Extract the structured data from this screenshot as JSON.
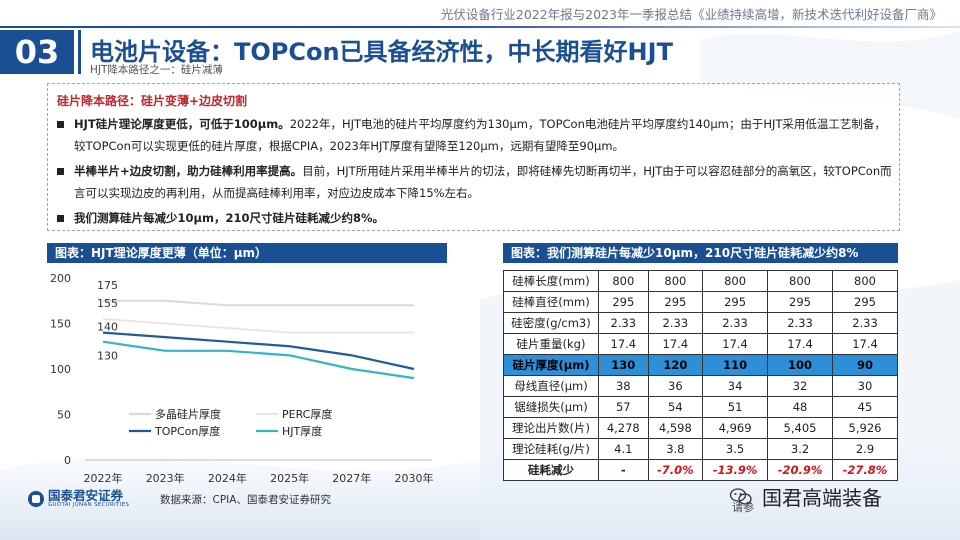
{
  "report_title": "光伏设备行业2022年报与2023年一季报总结《业绩持续高增，新技术迭代利好设备厂商》",
  "section_number": "03",
  "main_title": "电池片设备：TOPCon已具备经济性，中长期看好HJT",
  "sub_title": "HJT降本路径之一：硅片减薄",
  "info": {
    "head": "硅片降本路径：硅片变薄+边皮切割",
    "bullets": [
      {
        "bold": "HJT硅片理论厚度更低，可低于100μm。",
        "text": "2022年，HJT电池的硅片平均厚度约为130μm，TOPCon电池硅片平均厚度约140μm；由于HJT采用低温工艺制备，较TOPCon可以实现更低的硅片厚度，根据CPIA，2023年HJT厚度有望降至120μm，远期有望降至90μm。"
      },
      {
        "bold": "半棒半片+边皮切割，助力硅棒利用率提高。",
        "text": "目前，HJT所用硅片采用半棒半片的切法，即将硅棒先切断再切半，HJT由于可以容忍硅部分的高氧区，较TOPCon而言可以实现边皮的再利用，从而提高硅棒利用率，对应边皮成本下降15%左右。"
      },
      {
        "bold": "我们测算硅片每减少10μm，210尺寸硅片硅耗减少约8%。",
        "text": ""
      }
    ]
  },
  "chart_panel_title": "图表：HJT理论厚度更薄（单位：μm）",
  "table_panel_title": "图表：我们测算硅片每减少10μm，210尺寸硅片硅耗减少约8%",
  "source": "数据来源：CPIA、国泰君安证券研究",
  "logo": {
    "cn": "国泰君安证券",
    "en": "GUOTAI JUNAN SECURITIES"
  },
  "wechat": {
    "name": "国君高端装备",
    "under": "请参"
  },
  "colors": {
    "brand": "#1b4f93",
    "highlight": "#2d8fd7",
    "negative": "#d0161d"
  },
  "chart_data": {
    "type": "line",
    "categories": [
      "2022年",
      "2023年",
      "2024年",
      "2025年",
      "2027年",
      "2030年"
    ],
    "ylim": [
      0,
      200
    ],
    "yticks": [
      0,
      50,
      100,
      150,
      200
    ],
    "series": [
      {
        "name": "多晶硅片厚度",
        "color": "#d9d9d9",
        "values": [
          175,
          175,
          170,
          170,
          170,
          170
        ],
        "start_label": "175"
      },
      {
        "name": "PERC厚度",
        "color": "#e6e6e6",
        "values": [
          155,
          150,
          145,
          140,
          140,
          140
        ],
        "start_label": "155"
      },
      {
        "name": "TOPCon厚度",
        "color": "#1f5c99",
        "values": [
          140,
          135,
          130,
          125,
          115,
          100
        ],
        "start_label": "140"
      },
      {
        "name": "HJT厚度",
        "color": "#33b5c9",
        "values": [
          130,
          120,
          120,
          115,
          100,
          90
        ],
        "start_label": "130"
      }
    ]
  },
  "table": {
    "rows": [
      {
        "label": "硅棒长度(mm)",
        "cells": [
          "800",
          "800",
          "800",
          "800",
          "800"
        ]
      },
      {
        "label": "硅棒直径(mm)",
        "cells": [
          "295",
          "295",
          "295",
          "295",
          "295"
        ]
      },
      {
        "label": "硅密度(g/cm3)",
        "cells": [
          "2.33",
          "2.33",
          "2.33",
          "2.33",
          "2.33"
        ]
      },
      {
        "label": "硅片重量(kg)",
        "cells": [
          "17.4",
          "17.4",
          "17.4",
          "17.4",
          "17.4"
        ]
      },
      {
        "label": "硅片厚度(μm)",
        "cells": [
          "130",
          "120",
          "110",
          "100",
          "90"
        ],
        "highlight": true
      },
      {
        "label": "母线直径(μm)",
        "cells": [
          "38",
          "36",
          "34",
          "32",
          "30"
        ]
      },
      {
        "label": "锯缝损失(μm)",
        "cells": [
          "57",
          "54",
          "51",
          "48",
          "45"
        ]
      },
      {
        "label": "理论出片数(片)",
        "cells": [
          "4,278",
          "4,598",
          "4,969",
          "5,405",
          "5,926"
        ]
      },
      {
        "label": "理论硅耗(g/片)",
        "cells": [
          "4.1",
          "3.8",
          "3.5",
          "3.2",
          "2.9"
        ]
      },
      {
        "label": "硅耗减少",
        "cells": [
          "-",
          "-7.0%",
          "-13.9%",
          "-20.9%",
          "-27.8%"
        ],
        "reduction": true
      }
    ]
  }
}
